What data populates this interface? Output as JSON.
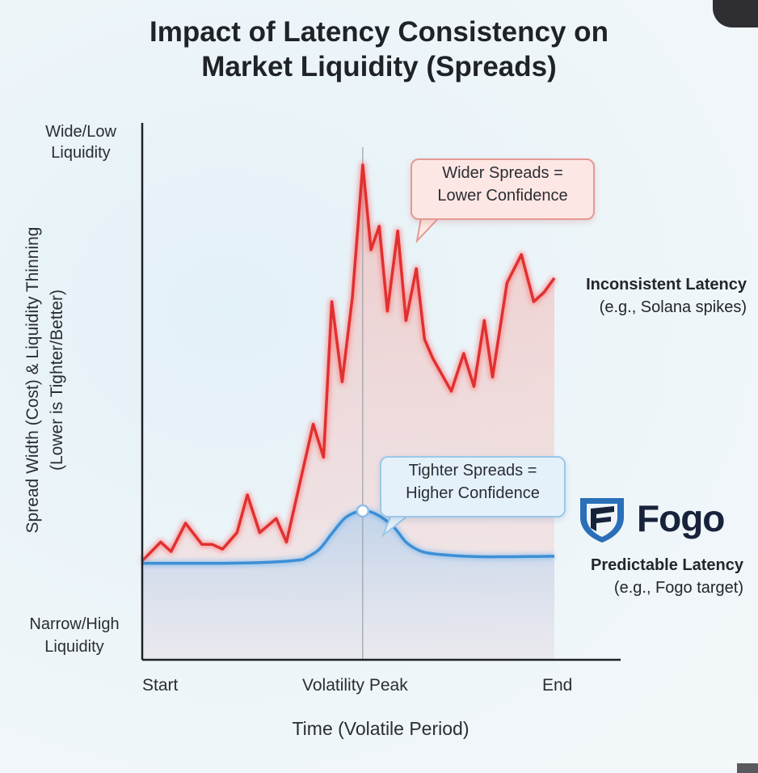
{
  "chart_data": {
    "type": "line",
    "title": "Impact of Latency Consistency on Market Liquidity (Spreads)",
    "title_lines": [
      "Impact of Latency Consistency on",
      "Market Liquidity (Spreads)"
    ],
    "xlabel": "Time (Volatile Period)",
    "ylabel": "Spread Width (Cost) & Liquidity Thinning (Lower is Tighter/Better)",
    "ylabel_lines": [
      "Spread Width (Cost) & Liquidity Thinning",
      "(Lower is Tighter/Better)"
    ],
    "y_top_label_lines": [
      "Wide/Low",
      "Liquidity"
    ],
    "y_bottom_label_lines": [
      "Narrow/High",
      "Liquidity"
    ],
    "x_tick_labels": [
      "Start",
      "Volatility Peak",
      "End"
    ],
    "xlim": [
      0,
      100
    ],
    "ylim": [
      0,
      100
    ],
    "peak_x": 53.5,
    "series": [
      {
        "name": "Inconsistent Latency",
        "subtitle": "(e.g., Solana spikes)",
        "color": "#e03030",
        "x": [
          0,
          4.5,
          7,
          10.5,
          14.5,
          17,
          19.5,
          23,
          25.5,
          28.5,
          32.5,
          35,
          41.5,
          44,
          46,
          48.5,
          51,
          53.5,
          55.5,
          57.5,
          59.5,
          62,
          64,
          66.5,
          68.5,
          70.5,
          75,
          78,
          80.5,
          83,
          85,
          88.5,
          92,
          95,
          97.5,
          100
        ],
        "values": [
          16,
          20,
          18,
          24,
          19.5,
          19.5,
          18.5,
          22,
          30,
          22,
          25,
          20,
          45,
          38,
          71,
          54,
          72,
          100,
          82,
          87,
          69,
          86,
          67,
          78,
          63,
          59,
          52,
          60,
          53,
          67,
          55,
          75,
          81,
          71,
          73,
          76
        ]
      },
      {
        "name": "Predictable Latency",
        "subtitle": "(e.g., Fogo target)",
        "color": "#3c8fd6",
        "x": [
          0,
          10,
          20,
          30,
          38,
          40,
          43,
          46,
          49.5,
          53.5,
          57,
          61,
          64,
          67,
          70,
          76,
          82,
          90,
          95,
          100
        ],
        "values": [
          15.5,
          15.5,
          15.5,
          15.7,
          16.2,
          16.8,
          18.5,
          21.8,
          25.3,
          26.6,
          25.8,
          23.2,
          20,
          18.3,
          17.6,
          17.1,
          16.9,
          16.9,
          16.95,
          17
        ]
      }
    ],
    "annotations": [
      {
        "lines": [
          "Wider Spreads =",
          "Lower Confidence"
        ],
        "series": "Inconsistent Latency"
      },
      {
        "lines": [
          "Tighter Spreads =",
          "Higher Confidence"
        ],
        "series": "Predictable Latency"
      }
    ],
    "grid": false,
    "legend": "inline-right"
  },
  "brand": {
    "name": "Fogo",
    "icon": "fogo-shield-icon",
    "color": "#17223b",
    "accent": "#2a6fb8"
  }
}
